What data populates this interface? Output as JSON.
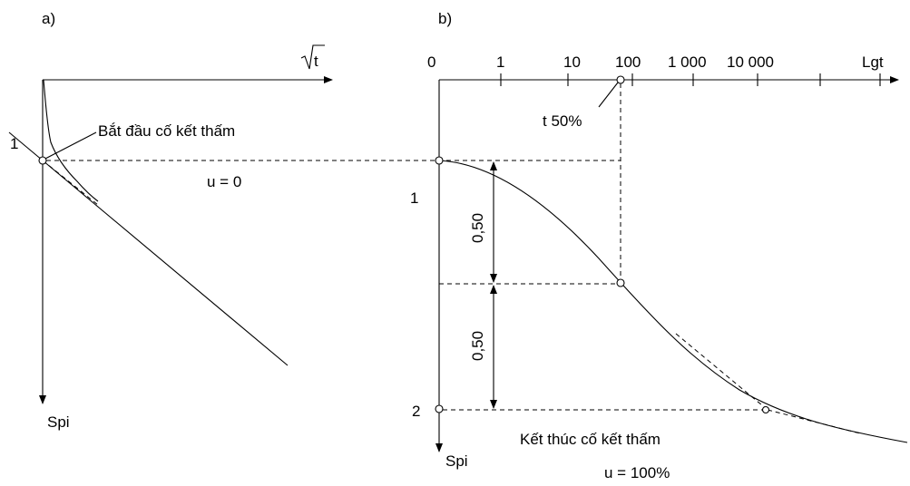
{
  "panel_a": {
    "label": "a)",
    "x_axis_label": "t",
    "y_axis_label": "Spi",
    "point_label": "1",
    "start_label": "Bắt đầu cố kết thấm",
    "u_zero_label": "u = 0"
  },
  "panel_b": {
    "label": "b)",
    "x_axis_label": "Lgt",
    "x_ticks": [
      "0",
      "1",
      "10",
      "100",
      "1 000",
      "10 000"
    ],
    "t50_label": "t 50%",
    "y_axis_label": "Spi",
    "point1_label": "1",
    "point2_label": "2",
    "dim_upper_label": "0,50",
    "dim_lower_label": "0,50",
    "end_label": "Kết thúc cố kết thấm",
    "u_full_label": "u = 100%"
  }
}
